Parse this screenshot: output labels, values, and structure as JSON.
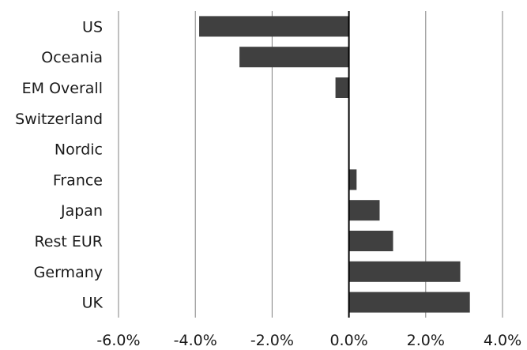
{
  "chart_data": {
    "type": "bar",
    "orientation": "horizontal",
    "title": "",
    "xlabel": "",
    "ylabel": "",
    "categories": [
      "US",
      "Oceania",
      "EM Overall",
      "Switzerland",
      "Nordic",
      "France",
      "Japan",
      "Rest EUR",
      "Germany",
      "UK"
    ],
    "values": [
      -3.9,
      -2.85,
      -0.35,
      0.0,
      0.0,
      0.2,
      0.8,
      1.15,
      2.9,
      3.15
    ],
    "xlim": [
      -6.0,
      4.0
    ],
    "x_ticks": [
      -6.0,
      -4.0,
      -2.0,
      0.0,
      2.0,
      4.0
    ],
    "x_tick_labels": [
      "-6.0%",
      "-4.0%",
      "-2.0%",
      "0.0%",
      "2.0%",
      "4.0%"
    ],
    "grid": "vertical",
    "legend": "none",
    "colors": {
      "bar": "#404040",
      "grid": "#808080",
      "zero_line": "#000000",
      "text": "#1a1a1a"
    }
  }
}
